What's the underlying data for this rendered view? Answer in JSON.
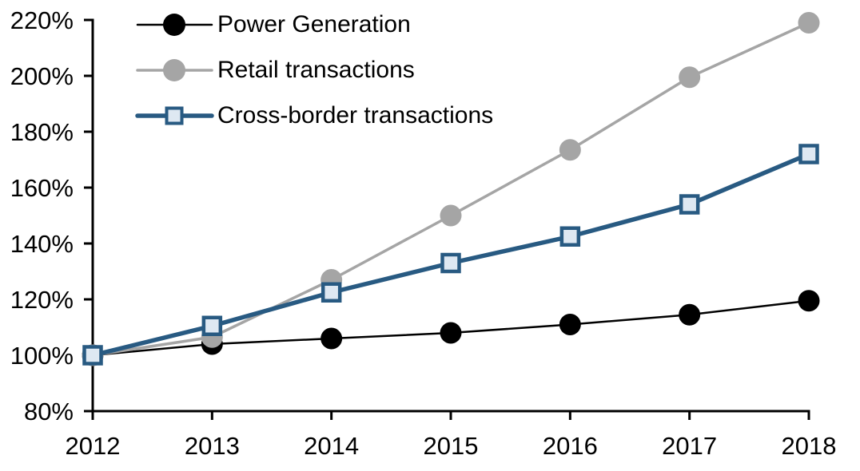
{
  "chart_data": {
    "type": "line",
    "title": "",
    "xlabel": "",
    "ylabel": "",
    "x_categories": [
      "2012",
      "2013",
      "2014",
      "2015",
      "2016",
      "2017",
      "2018"
    ],
    "y_ticks": [
      80,
      100,
      120,
      140,
      160,
      180,
      200,
      220
    ],
    "y_tick_labels": [
      "80%",
      "100%",
      "120%",
      "140%",
      "160%",
      "180%",
      "200%",
      "220%"
    ],
    "ylim": [
      80,
      220
    ],
    "grid": false,
    "legend_position": "top-left",
    "series": [
      {
        "name": "Power Generation",
        "values": [
          100,
          104,
          106,
          108,
          111,
          114.5,
          119.5
        ],
        "color": "#000000",
        "marker": "circle",
        "marker_fill": "#000000",
        "line_width": 2.5
      },
      {
        "name": "Retail transactions",
        "values": [
          100,
          106.5,
          127,
          150,
          173.5,
          199.5,
          219
        ],
        "color": "#A5A5A5",
        "marker": "circle",
        "marker_fill": "#A5A5A5",
        "line_width": 3.5
      },
      {
        "name": "Cross-border transactions",
        "values": [
          100,
          110.5,
          122.5,
          133,
          142.5,
          154,
          172
        ],
        "color": "#285A82",
        "marker": "square",
        "marker_fill": "#DEE8F2",
        "marker_border": "#285A82",
        "line_width": 5.5
      }
    ],
    "colors": {
      "axis": "#000000",
      "text": "#000000",
      "background": "#FFFFFF"
    }
  }
}
